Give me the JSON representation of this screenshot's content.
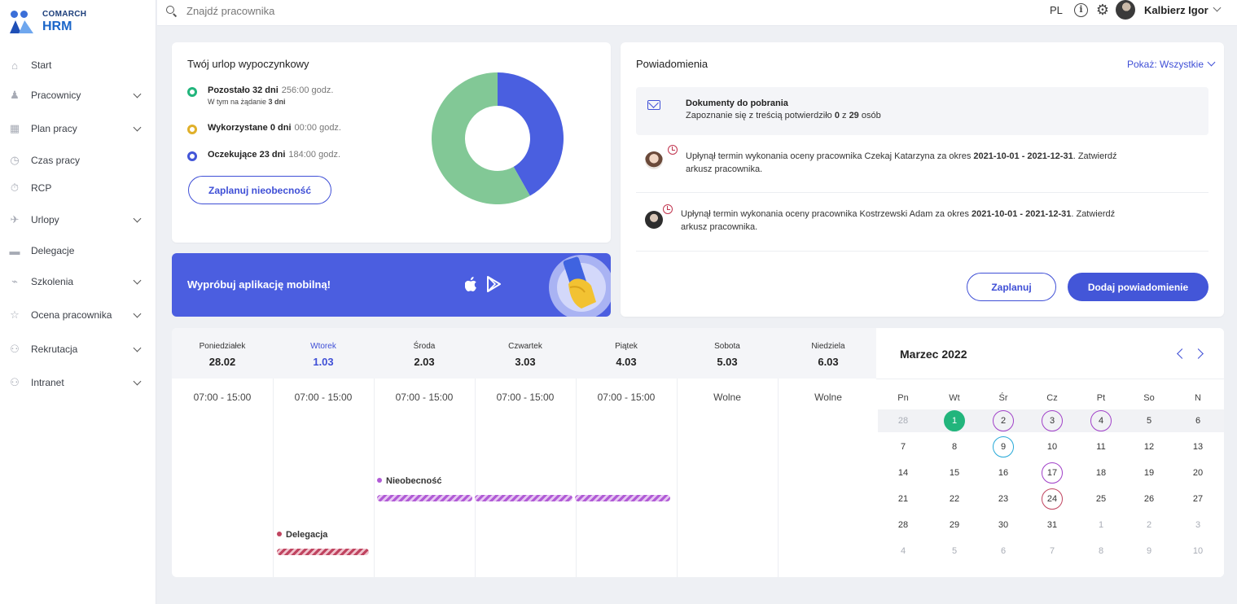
{
  "brand": {
    "company": "COMARCH",
    "product": "HRM"
  },
  "sidebar": {
    "items": [
      {
        "label": "Start",
        "icon": "home-icon",
        "has_submenu": false
      },
      {
        "label": "Pracownicy",
        "icon": "people-icon",
        "has_submenu": true
      },
      {
        "label": "Plan pracy",
        "icon": "calendar-grid-icon",
        "has_submenu": true
      },
      {
        "label": "Czas pracy",
        "icon": "clock-icon",
        "has_submenu": false
      },
      {
        "label": "RCP",
        "icon": "stopwatch-icon",
        "has_submenu": false
      },
      {
        "label": "Urlopy",
        "icon": "plane-icon",
        "has_submenu": true
      },
      {
        "label": "Delegacje",
        "icon": "briefcase-icon",
        "has_submenu": false
      },
      {
        "label": "Szkolenia",
        "icon": "graduation-icon",
        "has_submenu": true
      },
      {
        "label": "Ocena pracownika",
        "icon": "rating-icon",
        "has_submenu": true
      },
      {
        "label": "Rekrutacja",
        "icon": "recruitment-icon",
        "has_submenu": true
      },
      {
        "label": "Intranet",
        "icon": "intranet-icon",
        "has_submenu": true
      }
    ]
  },
  "topbar": {
    "search_placeholder": "Znajdź pracownika",
    "language": "PL",
    "user_name": "Kalbierz Igor"
  },
  "vacation": {
    "title": "Twój urlop wypoczynkowy",
    "rows": [
      {
        "label": "Pozostało 32 dni",
        "hours": "256:00 godz.",
        "color": "#22b57c",
        "sub_prefix": "W tym na żądanie ",
        "sub_value": "3 dni"
      },
      {
        "label": "Wykorzystane 0 dni",
        "hours": "00:00 godz.",
        "color": "#e0b02a"
      },
      {
        "label": "Oczekujące 23 dni",
        "hours": "184:00 godz.",
        "color": "#4356d8"
      }
    ],
    "plan_button": "Zaplanuj nieobecność",
    "donut": {
      "remaining_days": 32,
      "pending_days": 23,
      "used_days": 0,
      "remaining_color": "#82c896",
      "pending_color": "#4a5fe0"
    }
  },
  "mobile_banner": {
    "text": "Wypróbuj aplikację mobilną!",
    "color": "#4b5ee0"
  },
  "notifications": {
    "title": "Powiadomienia",
    "filter_label": "Pokaż: Wszystkie",
    "document": {
      "title": "Dokumenty do pobrania",
      "text_prefix": "Zapoznanie się z treścią potwierdziło ",
      "confirmed": "0",
      "text_mid": " z ",
      "total": "29",
      "text_suffix": " osób"
    },
    "items": [
      {
        "prefix": "Upłynął termin wykonania oceny pracownika Czekaj Katarzyna za okres ",
        "period": "2021-10-01 - 2021-12-31",
        "suffix": ". Zatwierdź arkusz pracownika."
      },
      {
        "prefix": "Upłynął termin wykonania oceny pracownika Kostrzewski Adam za okres ",
        "period": "2021-10-01 - 2021-12-31",
        "suffix": ". Zatwierdź arkusz pracownika."
      }
    ],
    "plan_button": "Zaplanuj",
    "add_button": "Dodaj powiadomienie"
  },
  "week": {
    "days": [
      {
        "name": "Poniedziałek",
        "date": "28.02",
        "hours": "07:00 - 15:00",
        "active": false
      },
      {
        "name": "Wtorek",
        "date": "1.03",
        "hours": "07:00 - 15:00",
        "active": true
      },
      {
        "name": "Środa",
        "date": "2.03",
        "hours": "07:00 - 15:00",
        "active": false
      },
      {
        "name": "Czwartek",
        "date": "3.03",
        "hours": "07:00 - 15:00",
        "active": false
      },
      {
        "name": "Piątek",
        "date": "4.03",
        "hours": "07:00 - 15:00",
        "active": false
      },
      {
        "name": "Sobota",
        "date": "5.03",
        "hours": "Wolne",
        "active": false
      },
      {
        "name": "Niedziela",
        "date": "6.03",
        "hours": "Wolne",
        "active": false
      }
    ],
    "events": [
      {
        "label": "Nieobecność",
        "color": "#b15bd6",
        "days": [
          "2.03",
          "3.03",
          "4.03"
        ]
      },
      {
        "label": "Delegacja",
        "color": "#c04460",
        "days": [
          "1.03"
        ]
      }
    ]
  },
  "calendar": {
    "title": "Marzec 2022",
    "weekdays": [
      "Pn",
      "Wt",
      "Śr",
      "Cz",
      "Pt",
      "So",
      "N"
    ],
    "weeks": [
      [
        "28",
        "1",
        "2",
        "3",
        "4",
        "5",
        "6"
      ],
      [
        "7",
        "8",
        "9",
        "10",
        "11",
        "12",
        "13"
      ],
      [
        "14",
        "15",
        "16",
        "17",
        "18",
        "19",
        "20"
      ],
      [
        "21",
        "22",
        "23",
        "24",
        "25",
        "26",
        "27"
      ],
      [
        "28",
        "29",
        "30",
        "31",
        "1",
        "2",
        "3"
      ],
      [
        "4",
        "5",
        "6",
        "7",
        "8",
        "9",
        "10"
      ]
    ],
    "today": "1",
    "marked_purple": [
      "2",
      "3",
      "4",
      "17"
    ],
    "marked_cyan": [
      "9"
    ],
    "marked_red": [
      "24"
    ]
  }
}
